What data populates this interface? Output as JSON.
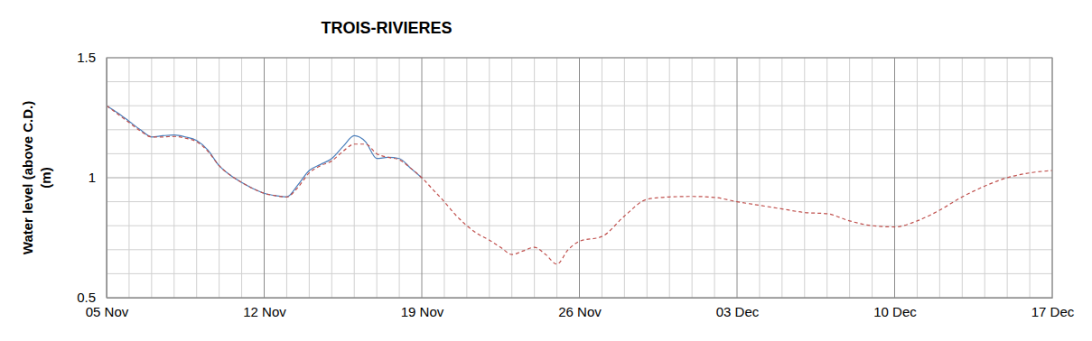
{
  "chart_data": {
    "type": "line",
    "title": "TROIS-RIVIERES",
    "y_label": [
      "Water level (above C.D.)",
      "(m)"
    ],
    "x": [
      0,
      0.5,
      1,
      1.5,
      2,
      2.5,
      3,
      3.5,
      4,
      4.5,
      5,
      5.5,
      6,
      6.5,
      7,
      7.5,
      8,
      8.5,
      9,
      9.5,
      10,
      10.5,
      11,
      11.5,
      12,
      12.5,
      13,
      13.5,
      14,
      14.5,
      15,
      15.5,
      16,
      16.5,
      17,
      17.5,
      18,
      18.5,
      19,
      19.5,
      20,
      20.5,
      21,
      22,
      23,
      24,
      25,
      26,
      27,
      28,
      29,
      30,
      31,
      32,
      33,
      34,
      35,
      36,
      37,
      38,
      39,
      40,
      41,
      42
    ],
    "series": [
      {
        "color": "#4a7ebb",
        "line_style": "solid",
        "values": [
          1.3,
          1.27,
          1.235,
          1.2,
          1.17,
          1.175,
          1.178,
          1.17,
          1.155,
          1.115,
          1.05,
          1.01,
          0.98,
          0.955,
          0.935,
          0.925,
          0.92,
          0.97,
          1.03,
          1.055,
          1.08,
          1.13,
          1.175,
          1.15,
          1.08,
          1.085,
          1.08,
          1.04,
          1.0,
          null,
          null,
          null,
          null,
          null,
          null,
          null,
          null,
          null,
          null,
          null,
          null,
          null,
          null,
          null,
          null,
          null,
          null,
          null,
          null,
          null,
          null,
          null,
          null,
          null,
          null,
          null,
          null,
          null,
          null,
          null,
          null,
          null,
          null,
          null
        ]
      },
      {
        "color": "#c0504d",
        "line_style": "dashed",
        "values": [
          1.3,
          1.265,
          1.23,
          1.195,
          1.17,
          1.17,
          1.172,
          1.165,
          1.15,
          1.11,
          1.05,
          1.01,
          0.98,
          0.955,
          0.935,
          0.925,
          0.92,
          0.96,
          1.02,
          1.05,
          1.07,
          1.11,
          1.14,
          1.14,
          1.1,
          1.085,
          1.075,
          1.04,
          1.0,
          0.95,
          0.9,
          0.845,
          0.8,
          0.765,
          0.74,
          0.71,
          0.68,
          0.695,
          0.71,
          0.68,
          0.64,
          0.7,
          0.735,
          0.755,
          0.84,
          0.91,
          0.92,
          0.922,
          0.918,
          0.9,
          0.885,
          0.87,
          0.855,
          0.85,
          0.82,
          0.8,
          0.795,
          0.82,
          0.865,
          0.92,
          0.965,
          1.0,
          1.02,
          1.03
        ]
      }
    ],
    "xlim": [
      0,
      42
    ],
    "xticks": [
      {
        "value": 0,
        "label": "05 Nov"
      },
      {
        "value": 7,
        "label": "12 Nov"
      },
      {
        "value": 14,
        "label": "19 Nov"
      },
      {
        "value": 21,
        "label": "26 Nov"
      },
      {
        "value": 28,
        "label": "03 Dec"
      },
      {
        "value": 35,
        "label": "10 Dec"
      },
      {
        "value": 42,
        "label": "17 Dec"
      }
    ],
    "xticks_minor": [
      1,
      2,
      3,
      4,
      5,
      6,
      8,
      9,
      10,
      11,
      12,
      13,
      15,
      16,
      17,
      18,
      19,
      20,
      22,
      23,
      24,
      25,
      26,
      27,
      29,
      30,
      31,
      32,
      33,
      34,
      36,
      37,
      38,
      39,
      40,
      41
    ],
    "ylim": [
      0.5,
      1.5
    ],
    "yticks": [
      0.5,
      1,
      1.5
    ],
    "yticks_minor": [
      0.6,
      0.7,
      0.8,
      0.9,
      1.1,
      1.2,
      1.3,
      1.4
    ],
    "grid": true
  }
}
